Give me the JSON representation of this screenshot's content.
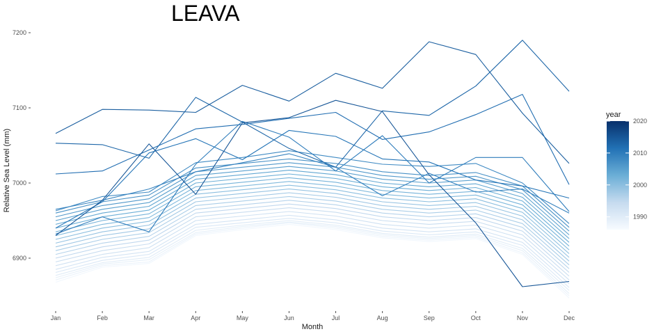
{
  "chart_data": {
    "type": "line",
    "title": "LEAVA",
    "xlabel": "Month",
    "ylabel": "Relative Sea Level (mm)",
    "categories": [
      "Jan",
      "Feb",
      "Mar",
      "Apr",
      "May",
      "Jun",
      "Jul",
      "Aug",
      "Sep",
      "Oct",
      "Nov",
      "Dec"
    ],
    "ylim": [
      6845,
      7210
    ],
    "y_ticks": [
      6900,
      7000,
      7100,
      7200
    ],
    "grid": false,
    "legend": {
      "title": "year",
      "placement": "right",
      "type": "colorbar",
      "range": [
        1986,
        2020
      ],
      "ticks": [
        1990,
        2000,
        2010,
        2020
      ],
      "colors": [
        "#f7fbff",
        "#c6dbef",
        "#6baed6",
        "#2171b5",
        "#08306b"
      ]
    },
    "series": [
      {
        "year": 1987,
        "values": [
          6868,
          6888,
          6893,
          6930,
          6938,
          6945,
          6938,
          6927,
          6922,
          6926,
          6905,
          6847
        ]
      },
      {
        "year": 1988,
        "values": [
          6871,
          6890,
          6895,
          6932,
          6940,
          6947,
          6940,
          6929,
          6924,
          6928,
          6907,
          6850
        ]
      },
      {
        "year": 1989,
        "values": [
          6874,
          6892,
          6898,
          6934,
          6942,
          6948,
          6942,
          6931,
          6926,
          6930,
          6910,
          6853
        ]
      },
      {
        "year": 1990,
        "values": [
          6877,
          6894,
          6901,
          6937,
          6944,
          6950,
          6944,
          6933,
          6928,
          6932,
          6913,
          6857
        ]
      },
      {
        "year": 1991,
        "values": [
          6881,
          6897,
          6905,
          6941,
          6947,
          6953,
          6947,
          6936,
          6931,
          6935,
          6917,
          6861
        ]
      },
      {
        "year": 1992,
        "values": [
          6885,
          6901,
          6909,
          6945,
          6951,
          6957,
          6951,
          6940,
          6935,
          6939,
          6921,
          6866
        ]
      },
      {
        "year": 1993,
        "values": [
          6890,
          6905,
          6914,
          6950,
          6956,
          6962,
          6956,
          6945,
          6940,
          6944,
          6926,
          6871
        ]
      },
      {
        "year": 1994,
        "values": [
          6895,
          6910,
          6919,
          6955,
          6961,
          6967,
          6961,
          6950,
          6945,
          6949,
          6931,
          6876
        ]
      },
      {
        "year": 1995,
        "values": [
          6900,
          6915,
          6924,
          6960,
          6966,
          6972,
          6966,
          6955,
          6950,
          6954,
          6936,
          6881
        ]
      },
      {
        "year": 1996,
        "values": [
          6905,
          6920,
          6929,
          6965,
          6971,
          6977,
          6971,
          6960,
          6955,
          6959,
          6941,
          6886
        ]
      },
      {
        "year": 1997,
        "values": [
          6910,
          6925,
          6934,
          6970,
          6976,
          6982,
          6976,
          6965,
          6960,
          6964,
          6946,
          6891
        ]
      },
      {
        "year": 1998,
        "values": [
          6915,
          6930,
          6939,
          6975,
          6981,
          6987,
          6981,
          6970,
          6965,
          6969,
          6951,
          6896
        ]
      },
      {
        "year": 1999,
        "values": [
          6920,
          6935,
          6944,
          6980,
          6986,
          6992,
          6986,
          6975,
          6970,
          6974,
          6956,
          6901
        ]
      },
      {
        "year": 2000,
        "values": [
          6925,
          6940,
          6949,
          6985,
          6991,
          6997,
          6991,
          6980,
          6975,
          6979,
          6961,
          6906
        ]
      },
      {
        "year": 2001,
        "values": [
          6930,
          6945,
          6954,
          6990,
          6996,
          7002,
          6996,
          6985,
          6980,
          6984,
          6966,
          6911
        ]
      },
      {
        "year": 2002,
        "values": [
          6935,
          6950,
          6959,
          6995,
          7001,
          7007,
          7001,
          6990,
          6985,
          6989,
          6971,
          6916
        ]
      },
      {
        "year": 2003,
        "values": [
          6940,
          6955,
          6964,
          7000,
          7006,
          7012,
          7006,
          6995,
          6990,
          6994,
          6976,
          6921
        ]
      },
      {
        "year": 2004,
        "values": [
          6945,
          6960,
          6969,
          7005,
          7011,
          7017,
          7011,
          7000,
          6995,
          6999,
          6981,
          6926
        ]
      },
      {
        "year": 2005,
        "values": [
          6950,
          6965,
          6974,
          7010,
          7016,
          7022,
          7016,
          7005,
          7000,
          7004,
          6986,
          6931
        ]
      },
      {
        "year": 2006,
        "values": [
          6955,
          6970,
          6979,
          7015,
          7021,
          7027,
          7021,
          7010,
          7005,
          7009,
          6991,
          6936
        ]
      },
      {
        "year": 2007,
        "values": [
          6960,
          6975,
          6984,
          7020,
          7026,
          7032,
          7026,
          7015,
          7010,
          7014,
          6996,
          6941
        ]
      },
      {
        "year": 2008,
        "values": [
          6963,
          6982,
          6988,
          7027,
          7034,
          7043,
          7034,
          7025,
          7022,
          7026,
          7000,
          6946
        ]
      },
      {
        "year": 2009,
        "values": [
          6965,
          6977,
          6992,
          7015,
          7027,
          7039,
          7021,
          6983,
          7013,
          6988,
          6992,
          6960
        ]
      },
      {
        "year": 2010,
        "values": [
          6932,
          6955,
          6935,
          7025,
          7082,
          7061,
          7016,
          7063,
          7000,
          7034,
          7034,
          6962
        ]
      },
      {
        "year": 2011,
        "values": [
          6940,
          6975,
          7040,
          7059,
          7031,
          7070,
          7062,
          7032,
          7028,
          7004,
          6996,
          6980
        ]
      },
      {
        "year": 2012,
        "values": [
          7012,
          7016,
          7044,
          7072,
          7078,
          7086,
          7094,
          7058,
          7068,
          7091,
          7118,
          6998
        ]
      },
      {
        "year": 2013,
        "values": [
          7053,
          7051,
          7033,
          7114,
          7081,
          7046,
          7021,
          7096,
          7090,
          7129,
          7190,
          7122
        ]
      },
      {
        "year": 2014,
        "values": [
          7066,
          7098,
          7097,
          7094,
          7130,
          7109,
          7146,
          7126,
          7188,
          7171,
          7093,
          7026
        ]
      },
      {
        "year": 2015,
        "values": [
          6930,
          6977,
          7052,
          6985,
          7080,
          7087,
          7110,
          7095,
          7011,
          6947,
          6862,
          6869
        ]
      }
    ]
  }
}
